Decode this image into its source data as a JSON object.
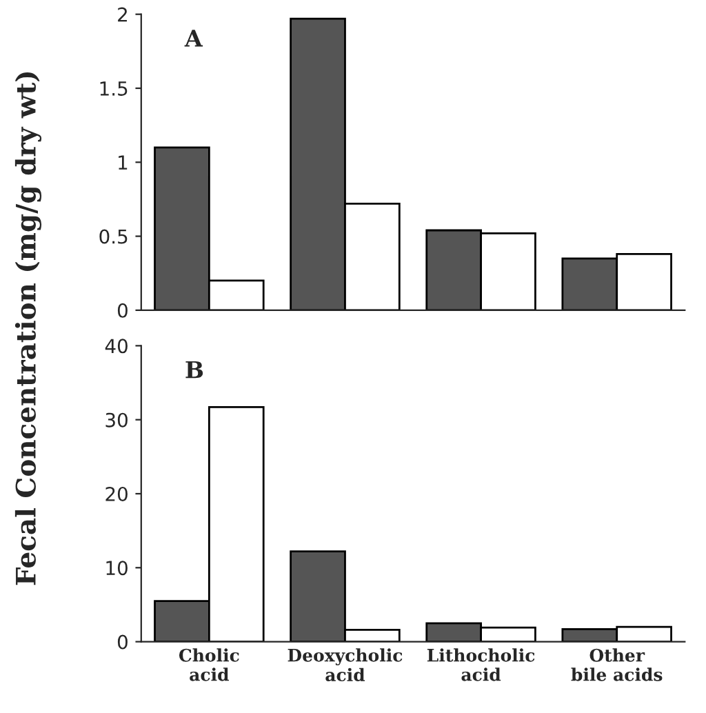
{
  "chart_data": [
    {
      "type": "bar",
      "title": "A",
      "ylabel": "Fecal Concentration (mg/g dry wt)",
      "categories": [
        null,
        null,
        null,
        null
      ],
      "tick_labels": "y",
      "ylim": [
        0,
        2
      ],
      "yticks": [
        0,
        0.5,
        1,
        1.5,
        2
      ],
      "series": [
        {
          "color": "#555555",
          "values": [
            1.1,
            1.97,
            0.54,
            0.35
          ]
        },
        {
          "color": "#ffffff",
          "values": [
            0.2,
            0.72,
            0.52,
            0.38
          ]
        }
      ]
    },
    {
      "type": "bar",
      "title": "B",
      "categories": [
        "Cholic\nacid",
        "Deoxycholic\nacid",
        "Lithocholic\nacid",
        "Other\nbile acids"
      ],
      "ylim": [
        0,
        40
      ],
      "yticks": [
        0,
        10,
        20,
        30,
        40
      ],
      "series": [
        {
          "color": "#555555",
          "values": [
            5.5,
            12.2,
            2.5,
            1.7
          ]
        },
        {
          "color": "#ffffff",
          "values": [
            31.7,
            1.6,
            1.9,
            2.0
          ]
        }
      ]
    }
  ]
}
